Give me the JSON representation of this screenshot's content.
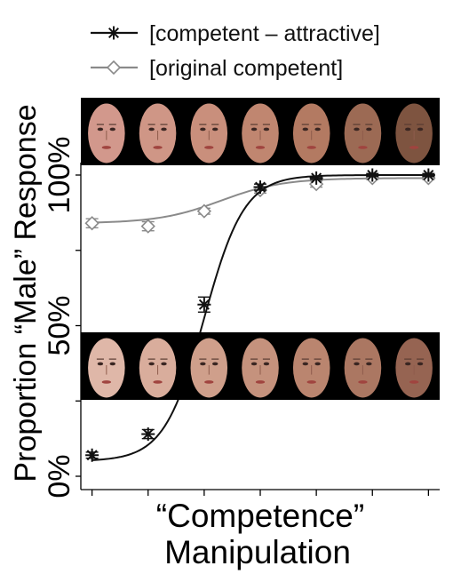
{
  "chart_data": {
    "type": "line",
    "xlabel_lines": [
      "“Competence”",
      "Manipulation"
    ],
    "ylabel": "Proportion “Male” Response",
    "ylim": [
      0,
      100
    ],
    "yticks": [
      {
        "value": 0,
        "label": "0%"
      },
      {
        "value": 50,
        "label": "50%"
      },
      {
        "value": 100,
        "label": "100%"
      }
    ],
    "x": [
      1,
      2,
      3,
      4,
      5,
      6,
      7
    ],
    "xlim": [
      0.8,
      7.2
    ],
    "curve_x_range": [
      1,
      7
    ],
    "legend_position": "top-left",
    "series": [
      {
        "name": "[competent – attractive]",
        "marker": "asterisk",
        "color": "#111111",
        "values": [
          7,
          14,
          57,
          96,
          99,
          100,
          100
        ],
        "errors": [
          1.0,
          1.5,
          2.5,
          1.0,
          0.5,
          0.5,
          0.5
        ],
        "fit": {
          "lower": 5,
          "upper": 100,
          "midpoint": 3.0,
          "slope": 2.8
        }
      },
      {
        "name": "[original competent]",
        "marker": "diamond",
        "color": "#8a8a8a",
        "values": [
          84,
          83,
          88,
          95,
          97,
          99,
          99
        ],
        "errors": [
          1.5,
          1.5,
          1.0,
          1.0,
          1.0,
          0.5,
          0.5
        ],
        "fit": {
          "lower": 84,
          "upper": 99,
          "midpoint": 3.3,
          "slope": 1.8
        }
      }
    ],
    "face_strips": [
      {
        "count": 7,
        "face_shading": [
          "#d2988c",
          "#cf9686",
          "#c98f7c",
          "#c08670",
          "#b37a62",
          "#9c6a54",
          "#7e5440"
        ],
        "background": "#000000"
      },
      {
        "count": 7,
        "face_shading": [
          "#dfb7a8",
          "#d9ad9c",
          "#cf9f8b",
          "#c5927d",
          "#ba856f",
          "#ab7762",
          "#966452"
        ],
        "background": "#000000"
      }
    ]
  }
}
